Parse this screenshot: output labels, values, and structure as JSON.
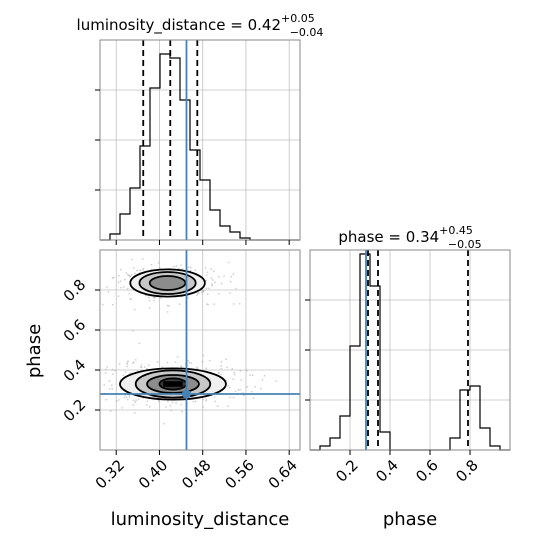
{
  "chart_data": {
    "type": "corner",
    "parameters": [
      "luminosity_distance",
      "phase"
    ],
    "injection": {
      "luminosity_distance": 0.45,
      "phase": 0.28
    },
    "colors": {
      "truth": "#4682b4",
      "hist": "#000000",
      "quantile": "#000000",
      "grid": "#c0c0c0",
      "frame": "#888888"
    },
    "grid": true,
    "panels": [
      {
        "id": "luminosity_distance",
        "title_prefix": "luminosity_distance = 0.42",
        "title_sup": "+0.05",
        "title_sub": "−0.04",
        "xlim": [
          0.29,
          0.66
        ],
        "ylim": [
          0,
          1
        ],
        "quantiles": [
          0.37,
          0.42,
          0.47
        ],
        "histogram": {
          "edges": [
            0.29,
            0.3085,
            0.327,
            0.3455,
            0.364,
            0.3825,
            0.401,
            0.4195,
            0.438,
            0.4565,
            0.475,
            0.4935,
            0.512,
            0.5305,
            0.549,
            0.5675,
            0.586,
            0.6045,
            0.623,
            0.6415,
            0.66
          ],
          "counts": [
            0.0,
            0.03,
            0.13,
            0.26,
            0.47,
            0.76,
            0.93,
            0.91,
            0.7,
            0.45,
            0.3,
            0.15,
            0.07,
            0.04,
            0.01,
            0.0,
            0.0,
            0.0,
            0.0,
            0.0
          ]
        }
      },
      {
        "id": "phase",
        "title_prefix": "phase = 0.34",
        "title_sup": "+0.45",
        "title_sub": "−0.05",
        "xlim": [
          0.0,
          1.0
        ],
        "ylim": [
          0,
          1
        ],
        "quantiles": [
          0.29,
          0.34,
          0.79
        ],
        "histogram": {
          "edges": [
            0.0,
            0.05,
            0.1,
            0.15,
            0.2,
            0.25,
            0.3,
            0.35,
            0.4,
            0.45,
            0.5,
            0.55,
            0.6,
            0.65,
            0.7,
            0.75,
            0.8,
            0.85,
            0.9,
            0.95,
            1.0
          ],
          "counts": [
            0.0,
            0.02,
            0.06,
            0.17,
            0.52,
            0.98,
            0.82,
            0.09,
            0.0,
            0.0,
            0.0,
            0.0,
            0.0,
            0.0,
            0.06,
            0.3,
            0.32,
            0.11,
            0.02,
            0.0
          ]
        }
      }
    ],
    "joint": {
      "x": "luminosity_distance",
      "y": "phase",
      "xlim": [
        0.29,
        0.66
      ],
      "ylim": [
        0.0,
        1.0
      ],
      "modes": [
        {
          "cx": 0.415,
          "cy": 0.835,
          "levels": [
            {
              "rx": 0.033,
              "ry": 0.035
            },
            {
              "rx": 0.052,
              "ry": 0.055
            },
            {
              "rx": 0.069,
              "ry": 0.068
            }
          ]
        },
        {
          "cx": 0.425,
          "cy": 0.33,
          "levels": [
            {
              "rx": 0.025,
              "ry": 0.028
            },
            {
              "rx": 0.048,
              "ry": 0.045
            },
            {
              "rx": 0.069,
              "ry": 0.068
            },
            {
              "rx": 0.098,
              "ry": 0.078
            }
          ]
        }
      ]
    },
    "xticks": {
      "luminosity_distance": [
        "0.32",
        "0.40",
        "0.48",
        "0.56",
        "0.64"
      ],
      "phase": [
        "0.2",
        "0.4",
        "0.6",
        "0.8"
      ]
    },
    "yticks": {
      "phase": [
        "0.2",
        "0.4",
        "0.6",
        "0.8"
      ]
    },
    "xlabel_bottom_left": "luminosity_distance",
    "xlabel_bottom_right": "phase",
    "ylabel_left": "phase"
  }
}
